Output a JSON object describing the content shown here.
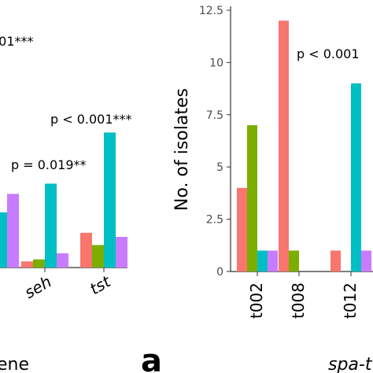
{
  "chart_data": [
    {
      "panel": "left",
      "type": "bar",
      "categories": [
        "",
        "seh",
        "tst"
      ],
      "colors": [
        "#F8766D",
        "#7CAE00",
        "#00BFC4",
        "#C77CFF"
      ],
      "series": [
        {
          "values": [
            null,
            0.3,
            1.7
          ]
        },
        {
          "values": [
            null,
            0.4,
            1.1
          ]
        },
        {
          "values": [
            2.7,
            4.1,
            6.6
          ]
        },
        {
          "values": [
            3.6,
            0.7,
            1.5
          ]
        }
      ],
      "annotations": [
        "001***",
        "p = 0.019**",
        "p < 0.001***"
      ],
      "xlabel": "ene"
    },
    {
      "panel": "right",
      "type": "bar",
      "categories": [
        "t002",
        "t008",
        "t012",
        "t0"
      ],
      "colors": [
        "#F8766D",
        "#7CAE00",
        "#00BFC4",
        "#C77CFF"
      ],
      "series": [
        {
          "values": [
            4,
            12,
            1,
            null
          ]
        },
        {
          "values": [
            7,
            1,
            0,
            null
          ]
        },
        {
          "values": [
            1,
            0,
            9,
            null
          ]
        },
        {
          "values": [
            1,
            0,
            1,
            null
          ]
        }
      ],
      "ylim": [
        0,
        12.5
      ],
      "yticks": [
        "0",
        "2.5",
        "5",
        "7.5",
        "10",
        "12.5"
      ],
      "ylabel": "No. of isolates",
      "annotations": [
        "p < 0.001"
      ],
      "xlabel": "spa-t"
    }
  ],
  "panel_label": "a"
}
